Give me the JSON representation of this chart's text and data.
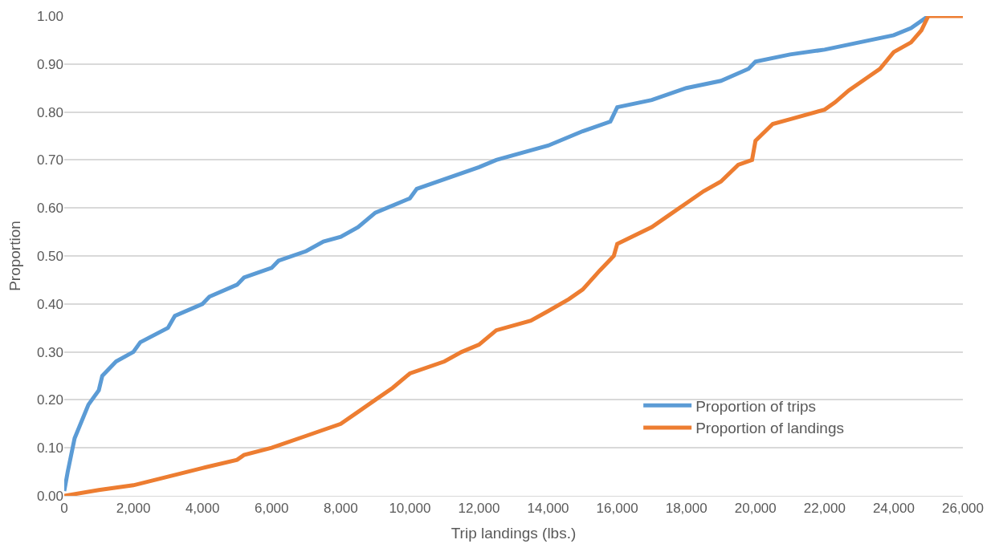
{
  "chart_data": {
    "type": "line",
    "xlabel": "Trip landings (lbs.)",
    "ylabel": "Proportion",
    "xlim": [
      0,
      26000
    ],
    "ylim": [
      0,
      1
    ],
    "xticks": [
      {
        "value": 0,
        "label": "0"
      },
      {
        "value": 2000,
        "label": "2,000"
      },
      {
        "value": 4000,
        "label": "4,000"
      },
      {
        "value": 6000,
        "label": "6,000"
      },
      {
        "value": 8000,
        "label": "8,000"
      },
      {
        "value": 10000,
        "label": "10,000"
      },
      {
        "value": 12000,
        "label": "12,000"
      },
      {
        "value": 14000,
        "label": "14,000"
      },
      {
        "value": 16000,
        "label": "16,000"
      },
      {
        "value": 18000,
        "label": "18,000"
      },
      {
        "value": 20000,
        "label": "20,000"
      },
      {
        "value": 22000,
        "label": "22,000"
      },
      {
        "value": 24000,
        "label": "24,000"
      },
      {
        "value": 26000,
        "label": "26,000"
      }
    ],
    "yticks": [
      {
        "value": 0,
        "label": "0.00"
      },
      {
        "value": 0.1,
        "label": "0.10"
      },
      {
        "value": 0.2,
        "label": "0.20"
      },
      {
        "value": 0.3,
        "label": "0.30"
      },
      {
        "value": 0.4,
        "label": "0.40"
      },
      {
        "value": 0.5,
        "label": "0.50"
      },
      {
        "value": 0.6,
        "label": "0.60"
      },
      {
        "value": 0.7,
        "label": "0.70"
      },
      {
        "value": 0.8,
        "label": "0.80"
      },
      {
        "value": 0.9,
        "label": "0.90"
      },
      {
        "value": 1,
        "label": "1.00"
      }
    ],
    "grid": "y",
    "legend": "bottom right",
    "marker": "none",
    "line_style": "solid",
    "series": [
      {
        "name": "Proportion of trips",
        "color": "#5b9bd5",
        "x": [
          0,
          100,
          300,
          700,
          1000,
          1100,
          1500,
          2000,
          2200,
          3000,
          3200,
          4000,
          4200,
          5000,
          5200,
          6000,
          6200,
          7000,
          7500,
          8000,
          8500,
          9000,
          10000,
          10200,
          11000,
          12000,
          12500,
          13500,
          14000,
          14500,
          15000,
          15800,
          16000,
          17000,
          18000,
          19000,
          19800,
          20000,
          21000,
          22000,
          23000,
          24000,
          24500,
          25000
        ],
        "values": [
          0.01,
          0.05,
          0.12,
          0.19,
          0.22,
          0.25,
          0.28,
          0.3,
          0.32,
          0.35,
          0.375,
          0.4,
          0.415,
          0.44,
          0.455,
          0.475,
          0.49,
          0.51,
          0.53,
          0.54,
          0.56,
          0.59,
          0.62,
          0.64,
          0.66,
          0.685,
          0.7,
          0.72,
          0.73,
          0.745,
          0.76,
          0.78,
          0.81,
          0.825,
          0.85,
          0.865,
          0.89,
          0.905,
          0.92,
          0.93,
          0.945,
          0.96,
          0.975,
          1.0
        ]
      },
      {
        "name": "Proportion of landings",
        "color": "#ed7d31",
        "x": [
          0,
          1000,
          2000,
          3000,
          4000,
          5000,
          5200,
          6000,
          7000,
          8000,
          8500,
          9000,
          9500,
          10000,
          11000,
          11500,
          12000,
          12500,
          13500,
          14000,
          14600,
          15000,
          15500,
          15900,
          16000,
          17000,
          17500,
          18000,
          18500,
          19000,
          19500,
          19900,
          20000,
          20500,
          21000,
          22000,
          22300,
          22700,
          23300,
          23600,
          24000,
          24500,
          24800,
          25000,
          26000
        ],
        "values": [
          0,
          0.012,
          0.022,
          0.04,
          0.058,
          0.075,
          0.085,
          0.1,
          0.125,
          0.15,
          0.175,
          0.2,
          0.225,
          0.255,
          0.28,
          0.3,
          0.315,
          0.345,
          0.365,
          0.385,
          0.41,
          0.43,
          0.47,
          0.5,
          0.525,
          0.56,
          0.585,
          0.61,
          0.635,
          0.655,
          0.69,
          0.7,
          0.74,
          0.775,
          0.785,
          0.805,
          0.82,
          0.845,
          0.875,
          0.89,
          0.925,
          0.945,
          0.97,
          1.0,
          1.0
        ]
      }
    ]
  }
}
